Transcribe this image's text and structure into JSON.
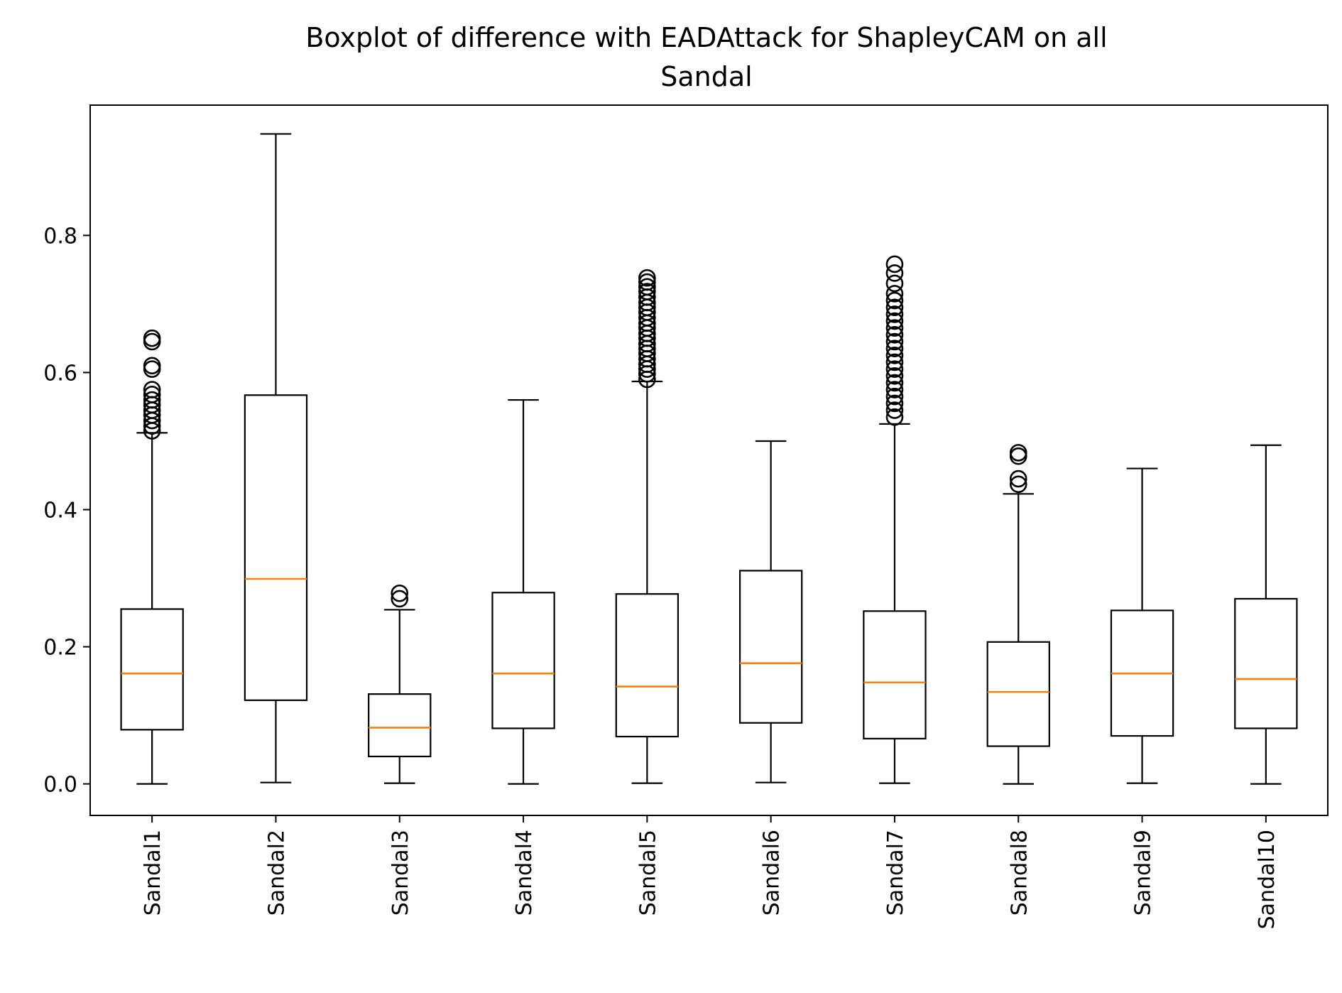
{
  "chart_data": {
    "type": "boxplot",
    "title_lines": [
      "Boxplot of difference with EADAttack for ShapleyCAM on all",
      "Sandal"
    ],
    "xlabel": "",
    "ylabel": "",
    "ylim": [
      -0.046,
      0.99
    ],
    "yticks": [
      0.0,
      0.2,
      0.4,
      0.6,
      0.8
    ],
    "ytick_labels": [
      "0.0",
      "0.2",
      "0.4",
      "0.6",
      "0.8"
    ],
    "categories": [
      "Sandal1",
      "Sandal2",
      "Sandal3",
      "Sandal4",
      "Sandal5",
      "Sandal6",
      "Sandal7",
      "Sandal8",
      "Sandal9",
      "Sandal10"
    ],
    "boxes": [
      {
        "whisker_low": 0.0,
        "q1": 0.079,
        "median": 0.161,
        "q3": 0.255,
        "whisker_high": 0.512,
        "outliers": [
          0.515,
          0.522,
          0.53,
          0.538,
          0.545,
          0.553,
          0.56,
          0.568,
          0.575,
          0.605,
          0.61,
          0.645,
          0.65
        ]
      },
      {
        "whisker_low": 0.002,
        "q1": 0.122,
        "median": 0.299,
        "q3": 0.567,
        "whisker_high": 0.948,
        "outliers": []
      },
      {
        "whisker_low": 0.001,
        "q1": 0.04,
        "median": 0.082,
        "q3": 0.131,
        "whisker_high": 0.254,
        "outliers": [
          0.27,
          0.278
        ]
      },
      {
        "whisker_low": 0.0,
        "q1": 0.081,
        "median": 0.161,
        "q3": 0.279,
        "whisker_high": 0.56,
        "outliers": []
      },
      {
        "whisker_low": 0.001,
        "q1": 0.069,
        "median": 0.142,
        "q3": 0.277,
        "whisker_high": 0.587,
        "outliers": [
          0.59,
          0.598,
          0.605,
          0.612,
          0.62,
          0.628,
          0.635,
          0.642,
          0.65,
          0.657,
          0.665,
          0.672,
          0.68,
          0.688,
          0.695,
          0.702,
          0.71,
          0.718,
          0.725,
          0.732,
          0.738
        ]
      },
      {
        "whisker_low": 0.002,
        "q1": 0.089,
        "median": 0.176,
        "q3": 0.311,
        "whisker_high": 0.5,
        "outliers": []
      },
      {
        "whisker_low": 0.001,
        "q1": 0.066,
        "median": 0.148,
        "q3": 0.252,
        "whisker_high": 0.525,
        "outliers": [
          0.535,
          0.545,
          0.555,
          0.565,
          0.575,
          0.585,
          0.595,
          0.605,
          0.615,
          0.625,
          0.635,
          0.645,
          0.655,
          0.665,
          0.675,
          0.685,
          0.695,
          0.705,
          0.715,
          0.73,
          0.745,
          0.758
        ]
      },
      {
        "whisker_low": 0.0,
        "q1": 0.055,
        "median": 0.134,
        "q3": 0.207,
        "whisker_high": 0.423,
        "outliers": [
          0.437,
          0.445,
          0.478,
          0.483
        ]
      },
      {
        "whisker_low": 0.001,
        "q1": 0.07,
        "median": 0.161,
        "q3": 0.253,
        "whisker_high": 0.46,
        "outliers": []
      },
      {
        "whisker_low": 0.0,
        "q1": 0.081,
        "median": 0.153,
        "q3": 0.27,
        "whisker_high": 0.494,
        "outliers": []
      }
    ],
    "colors": {
      "box": "#000000",
      "median": "#ff7f0e",
      "flier": "#000000"
    },
    "grid": false,
    "legend": "none"
  }
}
